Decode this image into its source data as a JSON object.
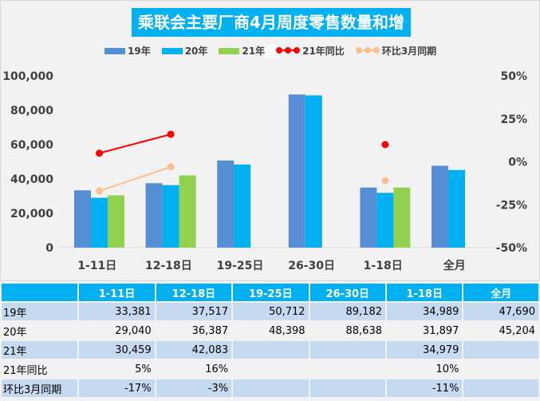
{
  "chart_data": {
    "type": "bar",
    "title": "乘联会主要厂商4月周度零售数量和增速",
    "categories": [
      "1-11日",
      "12-18日",
      "19-25日",
      "26-30日",
      "1-18日",
      "全月"
    ],
    "series": [
      {
        "name": "19年",
        "type": "bar",
        "color": "#558ed5",
        "values": [
          33381,
          37517,
          50712,
          89182,
          34989,
          47690
        ]
      },
      {
        "name": "20年",
        "type": "bar",
        "color": "#00b0f0",
        "values": [
          29040,
          36387,
          48398,
          88638,
          31897,
          45204
        ]
      },
      {
        "name": "21年",
        "type": "bar",
        "color": "#92d050",
        "values": [
          30459,
          42083,
          null,
          null,
          34979,
          null
        ]
      },
      {
        "name": "21年同比",
        "type": "line",
        "color": "#ff0000",
        "axis": "right",
        "values": [
          5,
          16,
          null,
          null,
          10,
          null
        ]
      },
      {
        "name": "环比3月同期",
        "type": "line",
        "color": "#fac090",
        "axis": "right",
        "values": [
          -17,
          -3,
          null,
          null,
          -11,
          null
        ]
      }
    ],
    "ylim": [
      0,
      100000
    ],
    "yticks": [
      "0",
      "20,000",
      "40,000",
      "60,000",
      "80,000",
      "100,000"
    ],
    "y2lim": [
      -50,
      50
    ],
    "y2ticks": [
      "-50%",
      "-25%",
      "0%",
      "25%",
      "50%"
    ],
    "legend": "top"
  },
  "table": {
    "header": [
      "",
      "1-11日",
      "12-18日",
      "19-25日",
      "26-30日",
      "1-18日",
      "全月"
    ],
    "rows": [
      [
        "19年",
        "33,381",
        "37,517",
        "50,712",
        "89,182",
        "34,989",
        "47,690"
      ],
      [
        "20年",
        "29,040",
        "36,387",
        "48,398",
        "88,638",
        "31,897",
        "45,204"
      ],
      [
        "21年",
        "30,459",
        "42,083",
        "",
        "",
        "34,979",
        ""
      ],
      [
        "21年同比",
        "5%",
        "16%",
        "",
        "",
        "10%",
        ""
      ],
      [
        "环比3月同期",
        "-17%",
        "-3%",
        "",
        "",
        "-11%",
        ""
      ]
    ]
  }
}
